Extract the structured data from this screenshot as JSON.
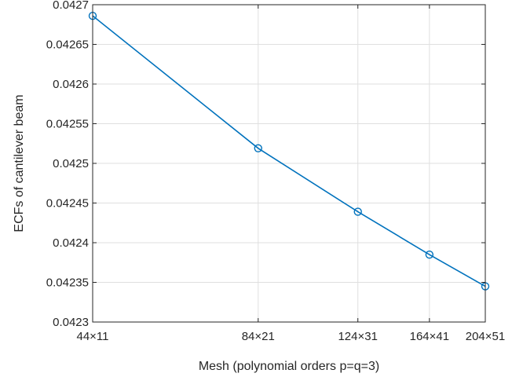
{
  "chart_data": {
    "type": "line",
    "xlabel": "Mesh (polynomial orders p=q=3)",
    "ylabel": "ECFs of cantilever beam",
    "x_positions": [
      44,
      84,
      124,
      164,
      204
    ],
    "x_tick_labels": [
      "44×11",
      "84×21",
      "124×31",
      "164×41",
      "204×51"
    ],
    "xlim": [
      44,
      204
    ],
    "xscale": "log",
    "ylim": [
      0.0423,
      0.0427
    ],
    "y_ticks": [
      0.0423,
      0.04235,
      0.0424,
      0.04245,
      0.0425,
      0.04255,
      0.0426,
      0.04265,
      0.0427
    ],
    "y_tick_labels": [
      "0.0423",
      "0.04235",
      "0.0424",
      "0.04245",
      "0.0425",
      "0.04255",
      "0.0426",
      "0.04265",
      "0.0427"
    ],
    "grid": true,
    "series": [
      {
        "values": [
          0.042686,
          0.042519,
          0.042439,
          0.042385,
          0.042345
        ],
        "color": "#0072bd",
        "marker": "circle"
      }
    ]
  }
}
